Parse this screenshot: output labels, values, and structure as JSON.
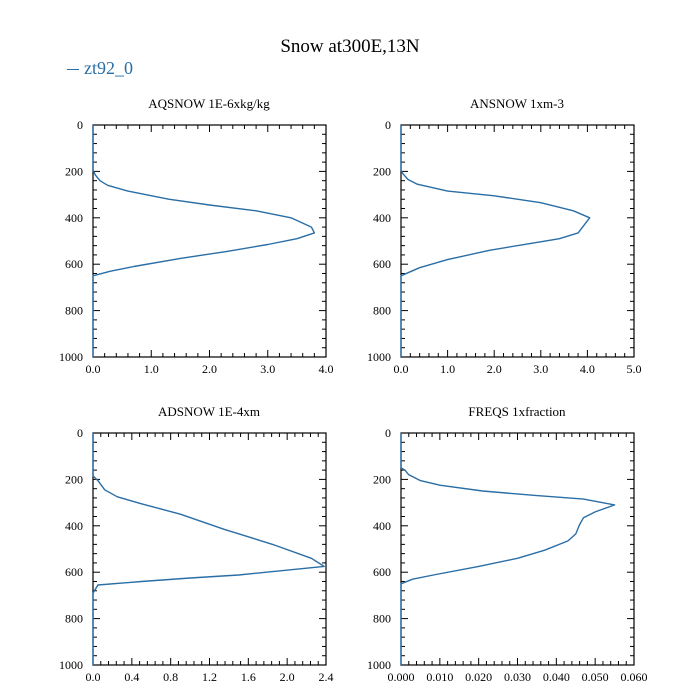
{
  "figure_title": "Snow at300E,13N",
  "legend": {
    "label": "zt92_0",
    "color": "#2a6ea6"
  },
  "colors": {
    "line": "#2a6ea6",
    "axis": "#000000"
  },
  "chart_data": [
    {
      "type": "line",
      "title": "AQSNOW  1E-6xkg/kg",
      "xlim": [
        0,
        4
      ],
      "ylim": [
        0,
        1000
      ],
      "xticks": [
        0,
        1,
        2,
        3,
        4
      ],
      "xticklabels": [
        "0.0",
        "1.0",
        "2.0",
        "3.0",
        "4.0"
      ],
      "yticks": [
        0,
        200,
        400,
        600,
        800,
        1000
      ],
      "yticklabels": [
        "0",
        "200",
        "400",
        "600",
        "800",
        "1000"
      ],
      "series": [
        {
          "name": "zt92_0",
          "points": [
            [
              0.0,
              1000
            ],
            [
              0.0,
              690
            ],
            [
              0.0,
              650
            ],
            [
              0.3,
              630
            ],
            [
              0.7,
              610
            ],
            [
              1.5,
              575
            ],
            [
              2.3,
              545
            ],
            [
              3.0,
              515
            ],
            [
              3.5,
              490
            ],
            [
              3.8,
              465
            ],
            [
              3.75,
              440
            ],
            [
              3.4,
              400
            ],
            [
              2.8,
              370
            ],
            [
              2.0,
              345
            ],
            [
              1.3,
              320
            ],
            [
              0.6,
              285
            ],
            [
              0.25,
              260
            ],
            [
              0.12,
              240
            ],
            [
              0.04,
              215
            ],
            [
              0.0,
              195
            ],
            [
              0.0,
              0
            ]
          ]
        }
      ]
    },
    {
      "type": "line",
      "title": "ANSNOW  1xm-3",
      "xlim": [
        0,
        5
      ],
      "ylim": [
        0,
        1000
      ],
      "xticks": [
        0,
        1,
        2,
        3,
        4,
        5
      ],
      "xticklabels": [
        "0.0",
        "1.0",
        "2.0",
        "3.0",
        "4.0",
        "5.0"
      ],
      "yticks": [
        0,
        200,
        400,
        600,
        800,
        1000
      ],
      "yticklabels": [
        "0",
        "200",
        "400",
        "600",
        "800",
        "1000"
      ],
      "series": [
        {
          "name": "zt92_0",
          "points": [
            [
              0.0,
              1000
            ],
            [
              0.0,
              690
            ],
            [
              0.0,
              650
            ],
            [
              0.4,
              615
            ],
            [
              1.0,
              580
            ],
            [
              1.9,
              540
            ],
            [
              2.8,
              510
            ],
            [
              3.4,
              490
            ],
            [
              3.8,
              465
            ],
            [
              4.05,
              400
            ],
            [
              3.7,
              370
            ],
            [
              3.0,
              335
            ],
            [
              2.0,
              305
            ],
            [
              1.0,
              285
            ],
            [
              0.35,
              255
            ],
            [
              0.15,
              235
            ],
            [
              0.04,
              210
            ],
            [
              0.0,
              195
            ],
            [
              0.0,
              0
            ]
          ]
        }
      ]
    },
    {
      "type": "line",
      "title": "ADSNOW  1E-4xm",
      "xlim": [
        0,
        2.4
      ],
      "ylim": [
        0,
        1000
      ],
      "xticks": [
        0,
        0.4,
        0.8,
        1.2,
        1.6,
        2.0,
        2.4
      ],
      "xticklabels": [
        "0.0",
        "0.4",
        "0.8",
        "1.2",
        "1.6",
        "2.0",
        "2.4"
      ],
      "yticks": [
        0,
        200,
        400,
        600,
        800,
        1000
      ],
      "yticklabels": [
        "0",
        "200",
        "400",
        "600",
        "800",
        "1000"
      ],
      "series": [
        {
          "name": "zt92_0",
          "points": [
            [
              0.0,
              1000
            ],
            [
              0.0,
              690
            ],
            [
              0.05,
              655
            ],
            [
              0.5,
              640
            ],
            [
              1.0,
              625
            ],
            [
              1.5,
              612
            ],
            [
              2.38,
              575
            ],
            [
              2.25,
              540
            ],
            [
              1.85,
              480
            ],
            [
              1.35,
              415
            ],
            [
              0.9,
              350
            ],
            [
              0.5,
              305
            ],
            [
              0.25,
              275
            ],
            [
              0.12,
              245
            ],
            [
              0.05,
              205
            ],
            [
              0.0,
              185
            ],
            [
              0.0,
              160
            ],
            [
              0.0,
              0
            ]
          ]
        }
      ]
    },
    {
      "type": "line",
      "title": "FREQS  1xfraction",
      "xlim": [
        0,
        0.06
      ],
      "ylim": [
        0,
        1000
      ],
      "xticks": [
        0,
        0.01,
        0.02,
        0.03,
        0.04,
        0.05,
        0.06
      ],
      "xticklabels": [
        "0.000",
        "0.010",
        "0.020",
        "0.030",
        "0.040",
        "0.050",
        "0.060"
      ],
      "yticks": [
        0,
        200,
        400,
        600,
        800,
        1000
      ],
      "yticklabels": [
        "0",
        "200",
        "400",
        "600",
        "800",
        "1000"
      ],
      "series": [
        {
          "name": "zt92_0",
          "points": [
            [
              0.0,
              1000
            ],
            [
              0.0,
              690
            ],
            [
              0.0,
              650
            ],
            [
              0.003,
              630
            ],
            [
              0.009,
              610
            ],
            [
              0.02,
              575
            ],
            [
              0.03,
              540
            ],
            [
              0.037,
              505
            ],
            [
              0.043,
              465
            ],
            [
              0.045,
              435
            ],
            [
              0.046,
              395
            ],
            [
              0.047,
              365
            ],
            [
              0.05,
              340
            ],
            [
              0.055,
              310
            ],
            [
              0.047,
              285
            ],
            [
              0.035,
              270
            ],
            [
              0.021,
              250
            ],
            [
              0.01,
              225
            ],
            [
              0.005,
              205
            ],
            [
              0.002,
              180
            ],
            [
              0.001,
              160
            ],
            [
              0.0,
              150
            ],
            [
              0.0,
              0
            ]
          ]
        }
      ]
    }
  ]
}
